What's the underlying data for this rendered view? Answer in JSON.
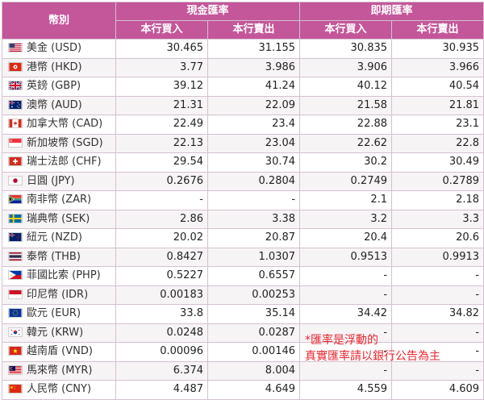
{
  "header": {
    "currency_col": "幣別",
    "cash_group": "現金匯率",
    "spot_group": "即期匯率",
    "cash_buy": "本行買入",
    "cash_sell": "本行賣出",
    "spot_buy": "本行買入",
    "spot_sell": "本行賣出"
  },
  "rows": [
    {
      "flag": "us-flag-icon",
      "name": "美金 (USD)",
      "cash_buy": "30.465",
      "cash_sell": "31.155",
      "spot_buy": "30.835",
      "spot_sell": "30.935"
    },
    {
      "flag": "hk-flag-icon",
      "name": "港幣 (HKD)",
      "cash_buy": "3.77",
      "cash_sell": "3.986",
      "spot_buy": "3.906",
      "spot_sell": "3.966"
    },
    {
      "flag": "gb-flag-icon",
      "name": "英鎊 (GBP)",
      "cash_buy": "39.12",
      "cash_sell": "41.24",
      "spot_buy": "40.12",
      "spot_sell": "40.54"
    },
    {
      "flag": "au-flag-icon",
      "name": "澳幣 (AUD)",
      "cash_buy": "21.31",
      "cash_sell": "22.09",
      "spot_buy": "21.58",
      "spot_sell": "21.81"
    },
    {
      "flag": "ca-flag-icon",
      "name": "加拿大幣 (CAD)",
      "cash_buy": "22.49",
      "cash_sell": "23.4",
      "spot_buy": "22.88",
      "spot_sell": "23.1"
    },
    {
      "flag": "sg-flag-icon",
      "name": "新加坡幣 (SGD)",
      "cash_buy": "22.13",
      "cash_sell": "23.04",
      "spot_buy": "22.62",
      "spot_sell": "22.8"
    },
    {
      "flag": "ch-flag-icon",
      "name": "瑞士法郎 (CHF)",
      "cash_buy": "29.54",
      "cash_sell": "30.74",
      "spot_buy": "30.2",
      "spot_sell": "30.49"
    },
    {
      "flag": "jp-flag-icon",
      "name": "日圓 (JPY)",
      "cash_buy": "0.2676",
      "cash_sell": "0.2804",
      "spot_buy": "0.2749",
      "spot_sell": "0.2789"
    },
    {
      "flag": "za-flag-icon",
      "name": "南非幣 (ZAR)",
      "cash_buy": "-",
      "cash_sell": "-",
      "spot_buy": "2.1",
      "spot_sell": "2.18"
    },
    {
      "flag": "se-flag-icon",
      "name": "瑞典幣 (SEK)",
      "cash_buy": "2.86",
      "cash_sell": "3.38",
      "spot_buy": "3.2",
      "spot_sell": "3.3"
    },
    {
      "flag": "nz-flag-icon",
      "name": "紐元 (NZD)",
      "cash_buy": "20.02",
      "cash_sell": "20.87",
      "spot_buy": "20.4",
      "spot_sell": "20.6"
    },
    {
      "flag": "th-flag-icon",
      "name": "泰幣 (THB)",
      "cash_buy": "0.8427",
      "cash_sell": "1.0307",
      "spot_buy": "0.9513",
      "spot_sell": "0.9913"
    },
    {
      "flag": "ph-flag-icon",
      "name": "菲國比索 (PHP)",
      "cash_buy": "0.5227",
      "cash_sell": "0.6557",
      "spot_buy": "-",
      "spot_sell": "-"
    },
    {
      "flag": "id-flag-icon",
      "name": "印尼幣 (IDR)",
      "cash_buy": "0.00183",
      "cash_sell": "0.00253",
      "spot_buy": "-",
      "spot_sell": "-"
    },
    {
      "flag": "eu-flag-icon",
      "name": "歐元 (EUR)",
      "cash_buy": "33.8",
      "cash_sell": "35.14",
      "spot_buy": "34.42",
      "spot_sell": "34.82"
    },
    {
      "flag": "kr-flag-icon",
      "name": "韓元 (KRW)",
      "cash_buy": "0.0248",
      "cash_sell": "0.0287",
      "spot_buy": "-",
      "spot_sell": "-"
    },
    {
      "flag": "vn-flag-icon",
      "name": "越南盾 (VND)",
      "cash_buy": "0.00096",
      "cash_sell": "0.00146",
      "spot_buy": "-",
      "spot_sell": "-"
    },
    {
      "flag": "my-flag-icon",
      "name": "馬來幣 (MYR)",
      "cash_buy": "6.374",
      "cash_sell": "8.004",
      "spot_buy": "-",
      "spot_sell": "-"
    },
    {
      "flag": "cn-flag-icon",
      "name": "人民幣 (CNY)",
      "cash_buy": "4.487",
      "cash_sell": "4.649",
      "spot_buy": "4.559",
      "spot_sell": "4.609"
    }
  ],
  "note": {
    "line1": "*匯率是浮動的",
    "line2": "真實匯率請以銀行公告為主"
  },
  "colors": {
    "header_bg": "#c4569a",
    "row_alt_bg": "#f7f4f6",
    "note_text": "#e8262f"
  }
}
